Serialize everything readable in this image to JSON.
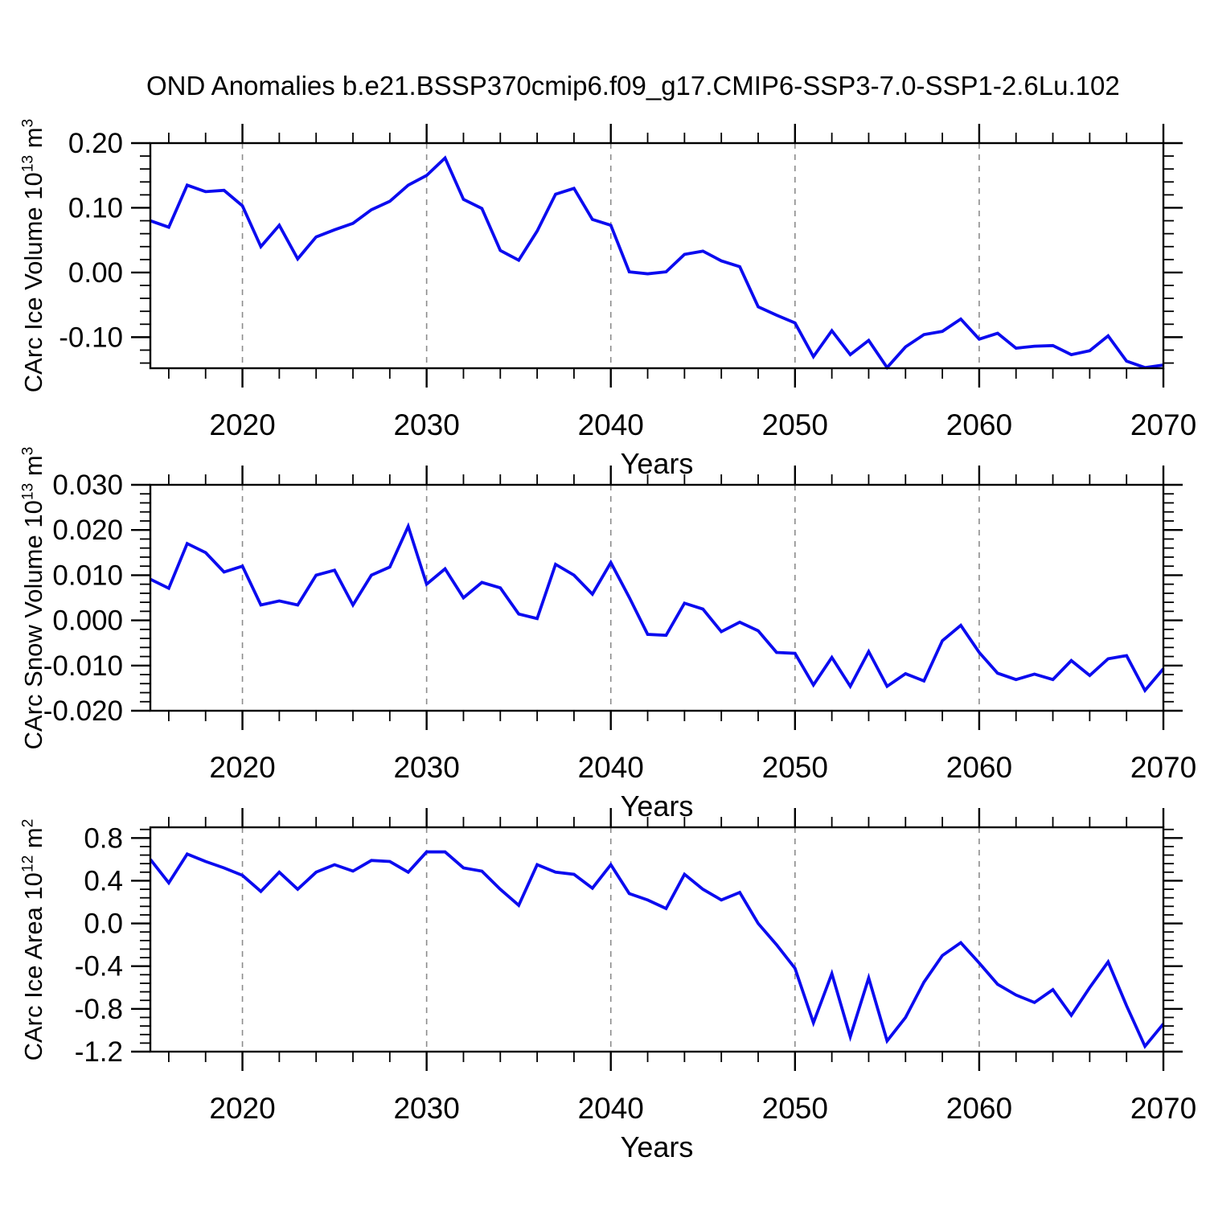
{
  "title": "OND Anomalies b.e21.BSSP370cmip6.f09_g17.CMIP6-SSP3-7.0-SSP1-2.6Lu.102",
  "chart_data": {
    "type": "line",
    "title": "OND Anomalies b.e21.BSSP370cmip6.f09_g17.CMIP6-SSP3-7.0-SSP1-2.6Lu.102",
    "xlabel": "Years",
    "xlim": [
      2015,
      2070
    ],
    "x_major_ticks": [
      2020,
      2030,
      2040,
      2050,
      2060,
      2070
    ],
    "x_tick_labels": [
      "2020",
      "2030",
      "2040",
      "2050",
      "2060",
      "2070"
    ],
    "x_minor_step": 2,
    "grid": "vertical dashed lines at decade major ticks (2020-2060)",
    "grid_years": [
      2020,
      2030,
      2040,
      2050,
      2060
    ],
    "legend": "none",
    "line_color": "#0b0bef",
    "grid_color": "#8c8c8c",
    "axis_color": "#000000",
    "x": [
      2015,
      2016,
      2017,
      2018,
      2019,
      2020,
      2021,
      2022,
      2023,
      2024,
      2025,
      2026,
      2027,
      2028,
      2029,
      2030,
      2031,
      2032,
      2033,
      2034,
      2035,
      2036,
      2037,
      2038,
      2039,
      2040,
      2041,
      2042,
      2043,
      2044,
      2045,
      2046,
      2047,
      2048,
      2049,
      2050,
      2051,
      2052,
      2053,
      2054,
      2055,
      2056,
      2057,
      2058,
      2059,
      2060,
      2061,
      2062,
      2063,
      2064,
      2065,
      2066,
      2067,
      2068,
      2069,
      2070
    ],
    "series": [
      {
        "id": "ice-volume",
        "name": "CArc Ice Volume 10^13 m^3",
        "ylabel_segments": [
          {
            "t": "CArc Ice Volume 10"
          },
          {
            "sup": "13"
          },
          {
            "t": " m"
          },
          {
            "sup": "3"
          }
        ],
        "ylim": [
          -0.148,
          0.2
        ],
        "y_major_ticks": [
          0.2,
          0.1,
          0.0,
          -0.1
        ],
        "y_tick_labels": [
          "0.20",
          "0.10",
          "0.00",
          "-0.10"
        ],
        "y_minor_step": 0.02,
        "values": [
          0.08,
          0.07,
          0.135,
          0.125,
          0.127,
          0.103,
          0.04,
          0.073,
          0.021,
          0.055,
          0.066,
          0.076,
          0.097,
          0.11,
          0.135,
          0.15,
          0.177,
          0.113,
          0.099,
          0.034,
          0.019,
          0.064,
          0.121,
          0.13,
          0.082,
          0.073,
          0.001,
          -0.002,
          0.001,
          0.028,
          0.033,
          0.018,
          0.009,
          -0.053,
          -0.066,
          -0.078,
          -0.13,
          -0.09,
          -0.127,
          -0.105,
          -0.147,
          -0.115,
          -0.096,
          -0.091,
          -0.072,
          -0.103,
          -0.094,
          -0.117,
          -0.114,
          -0.113,
          -0.127,
          -0.121,
          -0.098,
          -0.137,
          -0.147,
          -0.143
        ]
      },
      {
        "id": "snow-volume",
        "name": "CArc Snow Volume 10^13 m^3",
        "ylabel_segments": [
          {
            "t": "CArc Snow Volume 10"
          },
          {
            "sup": "13"
          },
          {
            "t": " m"
          },
          {
            "sup": "3"
          }
        ],
        "ylim": [
          -0.02,
          0.03
        ],
        "y_major_ticks": [
          0.03,
          0.02,
          0.01,
          0.0,
          -0.01,
          -0.02
        ],
        "y_tick_labels": [
          "0.030",
          "0.020",
          "0.010",
          "0.000",
          "-0.010",
          "-0.020"
        ],
        "y_minor_step": 0.002,
        "values": [
          0.0091,
          0.0071,
          0.017,
          0.015,
          0.0107,
          0.012,
          0.0034,
          0.0043,
          0.0034,
          0.01,
          0.0111,
          0.0034,
          0.01,
          0.0118,
          0.0208,
          0.008,
          0.0114,
          0.005,
          0.0084,
          0.0072,
          0.0014,
          0.0004,
          0.0124,
          0.01,
          0.0058,
          0.0128,
          0.0051,
          -0.0031,
          -0.0033,
          0.0038,
          0.0025,
          -0.0025,
          -0.0004,
          -0.0023,
          -0.0071,
          -0.0073,
          -0.0143,
          -0.0082,
          -0.0146,
          -0.0069,
          -0.0146,
          -0.0118,
          -0.0134,
          -0.0045,
          -0.0011,
          -0.0071,
          -0.0117,
          -0.0131,
          -0.0119,
          -0.0131,
          -0.0089,
          -0.0122,
          -0.0085,
          -0.0078,
          -0.0155,
          -0.0107
        ]
      },
      {
        "id": "ice-area",
        "name": "CArc Ice Area 10^12 m^2",
        "ylabel_segments": [
          {
            "t": "CArc Ice Area 10"
          },
          {
            "sup": "12"
          },
          {
            "t": " m"
          },
          {
            "sup": "2"
          }
        ],
        "ylim": [
          -1.2,
          0.9
        ],
        "y_major_ticks": [
          0.8,
          0.4,
          0.0,
          -0.4,
          -0.8,
          -1.2
        ],
        "y_tick_labels": [
          "0.8",
          "0.4",
          "0.0",
          "-0.4",
          "-0.8",
          "-1.2"
        ],
        "y_minor_step": 0.08,
        "values": [
          0.6,
          0.38,
          0.65,
          0.58,
          0.52,
          0.45,
          0.3,
          0.48,
          0.32,
          0.48,
          0.55,
          0.49,
          0.59,
          0.58,
          0.48,
          0.67,
          0.67,
          0.52,
          0.49,
          0.32,
          0.17,
          0.55,
          0.48,
          0.46,
          0.33,
          0.55,
          0.28,
          0.22,
          0.14,
          0.46,
          0.32,
          0.22,
          0.29,
          0.0,
          -0.2,
          -0.42,
          -0.93,
          -0.47,
          -1.06,
          -0.51,
          -1.1,
          -0.88,
          -0.55,
          -0.3,
          -0.18,
          -0.37,
          -0.57,
          -0.67,
          -0.74,
          -0.62,
          -0.86,
          -0.6,
          -0.36,
          -0.77,
          -1.15,
          -0.94
        ]
      }
    ]
  }
}
